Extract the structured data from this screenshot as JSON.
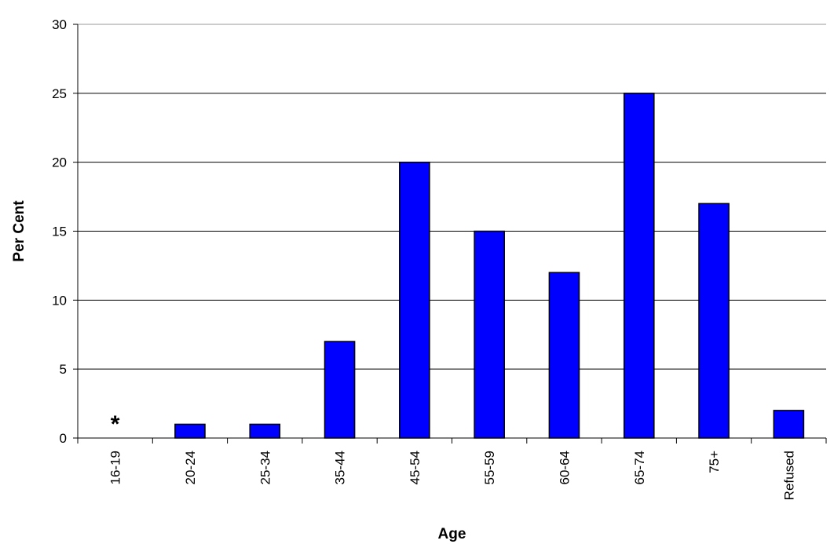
{
  "chart_data": {
    "type": "bar",
    "categories": [
      "16-19",
      "20-24",
      "25-34",
      "35-44",
      "45-54",
      "55-59",
      "60-64",
      "65-74",
      "75+",
      "Refused"
    ],
    "values": [
      0,
      1,
      1,
      7,
      20,
      15,
      12,
      25,
      17,
      2
    ],
    "xlabel": "Age",
    "ylabel": "Per Cent",
    "ylim": [
      0,
      30
    ],
    "yticks": [
      0,
      5,
      10,
      15,
      20,
      25,
      30
    ],
    "grid": true,
    "bar_color": "#0000ff",
    "bar_edge_color": "#000000",
    "annotations": [
      {
        "category": "16-19",
        "text": "*"
      }
    ]
  }
}
